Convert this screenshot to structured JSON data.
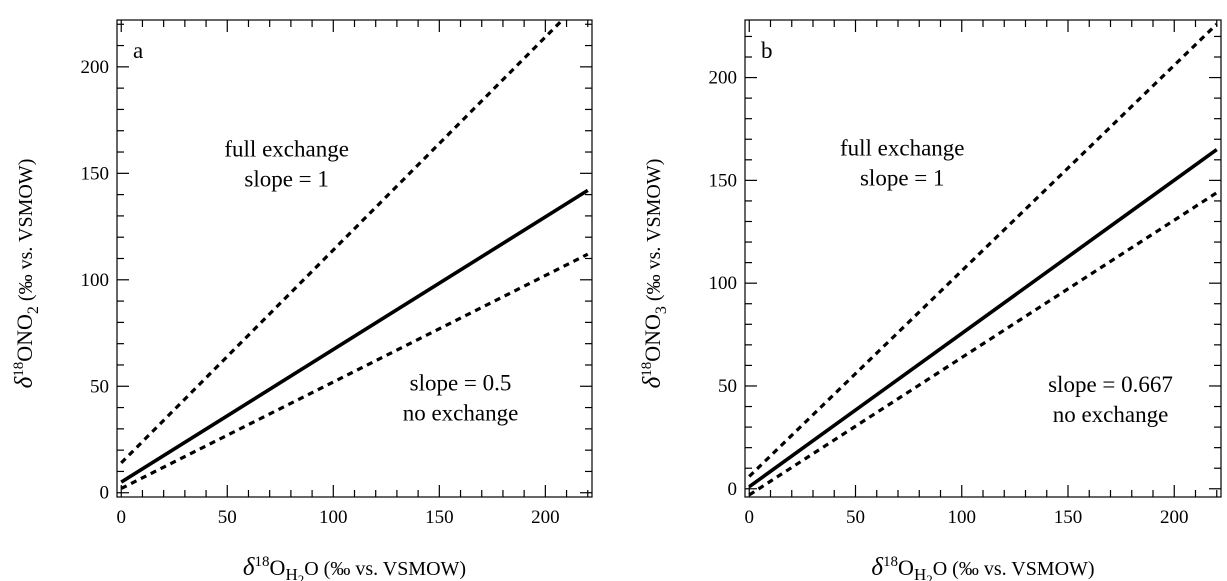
{
  "chart_data": [
    {
      "type": "line",
      "panel_label": "a",
      "xlim": [
        -2,
        222
      ],
      "ylim": [
        -2,
        222
      ],
      "x_ticks": [
        0,
        50,
        100,
        150,
        200
      ],
      "y_ticks": [
        0,
        50,
        100,
        150,
        200
      ],
      "x_tick_labels": [
        "0",
        "50",
        "100",
        "150",
        "200"
      ],
      "y_tick_labels": [
        "0",
        "50",
        "100",
        "150",
        "200"
      ],
      "xlabel": {
        "prefix": "δ",
        "sup": "18",
        "main": "O",
        "sub": "H",
        "sub_extra": "2",
        "tail": "O (‰ vs. VSMOW)"
      },
      "ylabel": {
        "prefix": "δ",
        "sup": "18",
        "main": "ONO",
        "sub": "2",
        "tail": " (‰ vs. VSMOW)"
      },
      "series": [
        {
          "style": "dashed",
          "x": [
            0,
            220
          ],
          "y": [
            14,
            234
          ]
        },
        {
          "style": "solid",
          "x": [
            0,
            220
          ],
          "y": [
            5,
            142
          ]
        },
        {
          "style": "dashed",
          "x": [
            0,
            220
          ],
          "y": [
            2,
            112
          ]
        }
      ],
      "annotations": [
        {
          "lines": [
            "full exchange",
            "slope = 1"
          ],
          "x": 78,
          "y": 158
        },
        {
          "lines": [
            "slope = 0.5",
            "no exchange"
          ],
          "x": 160,
          "y": 48
        }
      ]
    },
    {
      "type": "line",
      "panel_label": "b",
      "xlim": [
        -2,
        222
      ],
      "ylim": [
        -4,
        228
      ],
      "x_ticks": [
        0,
        50,
        100,
        150,
        200
      ],
      "y_ticks": [
        0,
        50,
        100,
        150,
        200
      ],
      "x_tick_labels": [
        "0",
        "50",
        "100",
        "150",
        "200"
      ],
      "y_tick_labels": [
        "0",
        "50",
        "100",
        "150",
        "200"
      ],
      "xlabel": {
        "prefix": "δ",
        "sup": "18",
        "main": "O",
        "sub": "H",
        "sub_extra": "2",
        "tail": "O (‰ vs. VSMOW)"
      },
      "ylabel": {
        "prefix": "δ",
        "sup": "18",
        "main": "ONO",
        "sub": "3",
        "tail": " (‰ vs. VSMOW)"
      },
      "series": [
        {
          "style": "dashed",
          "x": [
            0,
            220
          ],
          "y": [
            6,
            226
          ]
        },
        {
          "style": "solid",
          "x": [
            0,
            220
          ],
          "y": [
            1,
            165
          ]
        },
        {
          "style": "dashed",
          "x": [
            0,
            220
          ],
          "y": [
            -3,
            144
          ]
        }
      ],
      "annotations": [
        {
          "lines": [
            "full exchange",
            "slope = 1"
          ],
          "x": 72,
          "y": 162
        },
        {
          "lines": [
            "slope = 0.667",
            "no exchange"
          ],
          "x": 170,
          "y": 47
        }
      ]
    }
  ]
}
